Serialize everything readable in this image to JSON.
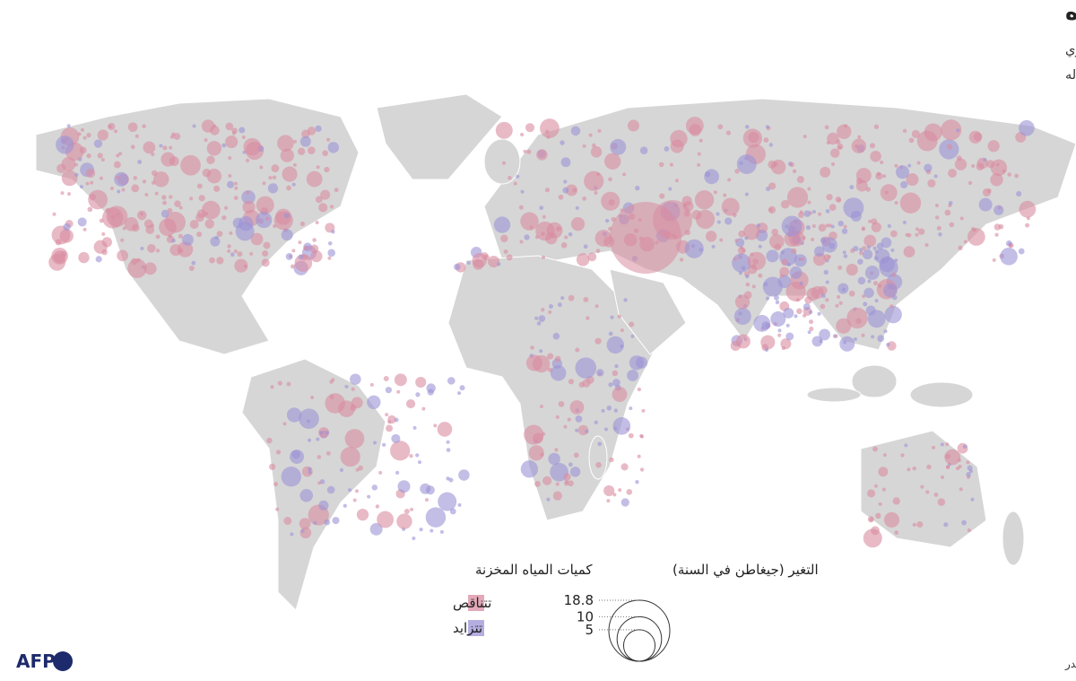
{
  "title": "المياه تنحسر في نصف بحيرات العالم وسدوده",
  "subtitle": [
    "أظهرت دراسة جديدة أن كمية المياه تقلصت في أكثر من نصف بحيرات العالم وخزاناته خلال الفترة الممتدة بين 1992 و2020، وهو اتجاه يهدد هذا المصدر الحيوي",
    "للمياه العذبة ويُعزى إلى حد كبير إلى الاحتباس الحراري والإفراط في استخدام البشر له"
  ],
  "legend": {
    "color_title": "كميات المياه المخزنة",
    "colors": [
      {
        "label": "تتناقص",
        "color": "#d98ca0"
      },
      {
        "label": "تتزايد",
        "color": "#9b93d6"
      }
    ],
    "size_title": "التغير (جيغاطن في السنة)",
    "sizes": [
      18.8,
      10,
      5
    ]
  },
  "source": "المصادر: مجلة ساينس العلمية، جامعة كولورادو بولدر",
  "logo": "AFP"
}
